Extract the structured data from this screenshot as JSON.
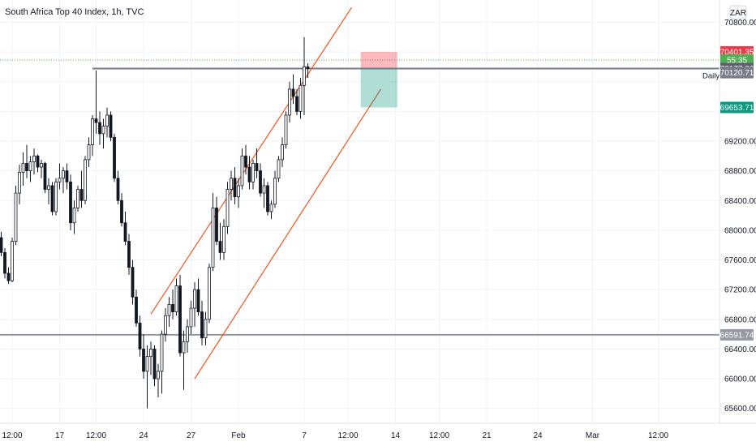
{
  "chart_data": {
    "type": "candlestick",
    "title": "South Africa Top 40 Index, 1h, TVC",
    "currency_button": "ZAR",
    "y_ticks": [
      65600,
      66000,
      66400,
      66800,
      67200,
      67600,
      68000,
      68400,
      68800,
      69200,
      69600,
      70000,
      70400,
      70800
    ],
    "y_tick_labels": [
      "65600.00",
      "66000.00",
      "66400.00",
      "66800.00",
      "67200.00",
      "67600.00",
      "68000.00",
      "68400.00",
      "68800.00",
      "69200.00",
      "",
      "",
      "",
      "70800.00"
    ],
    "ylim": [
      65400,
      71100
    ],
    "x_ticks": [
      {
        "label": "12:00",
        "slot": 3
      },
      {
        "label": "17",
        "slot": 16
      },
      {
        "label": "12:00",
        "slot": 26
      },
      {
        "label": "24",
        "slot": 39
      },
      {
        "label": "27",
        "slot": 52
      },
      {
        "label": "Feb",
        "slot": 65
      },
      {
        "label": "7",
        "slot": 83
      },
      {
        "label": "12:00",
        "slot": 95
      },
      {
        "label": "14",
        "slot": 108
      },
      {
        "label": "12:00",
        "slot": 120
      },
      {
        "label": "21",
        "slot": 133
      },
      {
        "label": "24",
        "slot": 147
      },
      {
        "label": "Mar",
        "slot": 162
      },
      {
        "label": "12:00",
        "slot": 180
      }
    ],
    "daily_label": "Daily",
    "price_tags": [
      {
        "label": "70401.35",
        "value": 70401.35,
        "color": "#f23645"
      },
      {
        "label": "55:35",
        "value": 70290,
        "color": "#4caf50"
      },
      {
        "label": "70177.06",
        "value": 70177.06,
        "color": "#5d606b"
      },
      {
        "label": "70120.71",
        "value": 70120.71,
        "color": "#787b86"
      },
      {
        "label": "69653.71",
        "value": 69653.71,
        "color": "#089981"
      },
      {
        "label": "66591.74",
        "value": 66591.74,
        "color": "#9598a1"
      }
    ],
    "horizontal_lines": [
      {
        "value": 66591.74,
        "color": "#9598a1"
      },
      {
        "value": 70177.06,
        "color": "#787b86",
        "from_slot": 25
      }
    ],
    "current_price_line": {
      "value": 70290,
      "color": "#4caf50"
    },
    "channel": {
      "color": "#f7521e",
      "upper": [
        [
          41,
          66870
        ],
        [
          96,
          71000
        ]
      ],
      "lower": [
        [
          53,
          66000
        ],
        [
          104,
          69900
        ]
      ]
    },
    "position": {
      "from_slot": 98.5,
      "to_slot": 108.5,
      "entry": 70177.06,
      "stop": 70401.35,
      "target": 69653.71
    },
    "series": [
      {
        "name": "candles",
        "ohlc": [
          [
            67900,
            67980,
            67650,
            67700
          ],
          [
            67700,
            67760,
            67350,
            67420
          ],
          [
            67420,
            67500,
            67280,
            67320
          ],
          [
            67320,
            67900,
            67300,
            67850
          ],
          [
            67850,
            68600,
            67800,
            68500
          ],
          [
            68500,
            68880,
            68350,
            68780
          ],
          [
            68780,
            69050,
            68600,
            68900
          ],
          [
            68900,
            69150,
            68700,
            68800
          ],
          [
            68800,
            69000,
            68650,
            68920
          ],
          [
            68920,
            69100,
            68750,
            69000
          ],
          [
            69000,
            69020,
            68780,
            68850
          ],
          [
            68850,
            68950,
            68700,
            68900
          ],
          [
            68900,
            68920,
            68500,
            68550
          ],
          [
            68550,
            68700,
            68350,
            68600
          ],
          [
            68600,
            68650,
            68200,
            68250
          ],
          [
            68250,
            68700,
            68200,
            68650
          ],
          [
            68650,
            68900,
            68550,
            68700
          ],
          [
            68700,
            68850,
            68500,
            68800
          ],
          [
            68800,
            68900,
            68550,
            68650
          ],
          [
            68650,
            68750,
            68000,
            68100
          ],
          [
            68100,
            68400,
            67950,
            68300
          ],
          [
            68300,
            68600,
            68250,
            68550
          ],
          [
            68550,
            68800,
            68300,
            68400
          ],
          [
            68400,
            69000,
            68350,
            68950
          ],
          [
            68950,
            69250,
            68850,
            69150
          ],
          [
            69150,
            69550,
            69000,
            69500
          ],
          [
            69500,
            70150,
            69300,
            69450
          ],
          [
            69450,
            69600,
            69150,
            69300
          ],
          [
            69300,
            69500,
            69100,
            69400
          ],
          [
            69400,
            69650,
            69250,
            69550
          ],
          [
            69550,
            69600,
            69200,
            69250
          ],
          [
            69250,
            69300,
            68650,
            68700
          ],
          [
            68700,
            68800,
            68350,
            68400
          ],
          [
            68400,
            68500,
            68050,
            68100
          ],
          [
            68100,
            68250,
            67800,
            67850
          ],
          [
            67850,
            67950,
            67400,
            67500
          ],
          [
            67500,
            67600,
            67000,
            67100
          ],
          [
            67100,
            67200,
            66700,
            66750
          ],
          [
            66750,
            66850,
            66300,
            66400
          ],
          [
            66400,
            66600,
            66000,
            66100
          ],
          [
            66100,
            66450,
            65600,
            66300
          ],
          [
            66300,
            66500,
            66050,
            66400
          ],
          [
            66400,
            66450,
            65900,
            66000
          ],
          [
            66000,
            66200,
            65750,
            66100
          ],
          [
            66100,
            66650,
            65800,
            66600
          ],
          [
            66600,
            66950,
            66500,
            66850
          ],
          [
            66850,
            67100,
            66700,
            67000
          ],
          [
            67000,
            67200,
            66800,
            66900
          ],
          [
            66900,
            67350,
            66850,
            67250
          ],
          [
            67250,
            67400,
            66300,
            66350
          ],
          [
            66350,
            66650,
            65850,
            66500
          ],
          [
            66500,
            66800,
            66350,
            66700
          ],
          [
            66700,
            67050,
            66600,
            66950
          ],
          [
            66950,
            67300,
            66700,
            67200
          ],
          [
            67200,
            67350,
            66850,
            66900
          ],
          [
            66900,
            67050,
            66450,
            66550
          ],
          [
            66550,
            66900,
            66450,
            66800
          ],
          [
            66800,
            67550,
            66750,
            67500
          ],
          [
            67500,
            68500,
            67450,
            68300
          ],
          [
            68300,
            68450,
            67800,
            67850
          ],
          [
            67850,
            68100,
            67600,
            67700
          ],
          [
            67700,
            68150,
            67600,
            68050
          ],
          [
            68050,
            68650,
            67950,
            68550
          ],
          [
            68550,
            68800,
            68400,
            68700
          ],
          [
            68700,
            68850,
            68350,
            68450
          ],
          [
            68450,
            68700,
            68300,
            68600
          ],
          [
            68600,
            69100,
            68550,
            69000
          ],
          [
            69000,
            69150,
            68750,
            68850
          ],
          [
            68850,
            69000,
            68550,
            68650
          ],
          [
            68650,
            68950,
            68550,
            68900
          ],
          [
            68900,
            69100,
            68700,
            68800
          ],
          [
            68800,
            68900,
            68450,
            68500
          ],
          [
            68500,
            68700,
            68300,
            68600
          ],
          [
            68600,
            68650,
            68200,
            68250
          ],
          [
            68250,
            68400,
            68150,
            68350
          ],
          [
            68350,
            68800,
            68300,
            68700
          ],
          [
            68700,
            69000,
            68650,
            68950
          ],
          [
            68950,
            69250,
            68850,
            69150
          ],
          [
            69150,
            69600,
            69100,
            69550
          ],
          [
            69550,
            70000,
            69450,
            69900
          ],
          [
            69900,
            70100,
            69700,
            69800
          ],
          [
            69800,
            69900,
            69550,
            69600
          ],
          [
            69600,
            70050,
            69500,
            69950
          ],
          [
            69950,
            70600,
            69550,
            70200
          ],
          [
            70200,
            70250,
            70050,
            70177
          ]
        ]
      }
    ]
  }
}
